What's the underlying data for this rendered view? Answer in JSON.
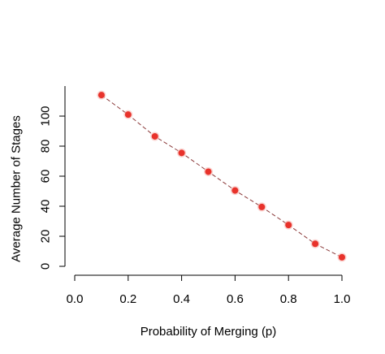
{
  "chart_data": {
    "type": "line",
    "title": "",
    "xlabel": "Probability of Merging (p)",
    "ylabel": "Average Number of Stages",
    "xlim": [
      0.0,
      1.0
    ],
    "ylim": [
      0,
      120
    ],
    "x_ticks": [
      "0.0",
      "0.2",
      "0.4",
      "0.6",
      "0.8",
      "1.0"
    ],
    "y_ticks": [
      "0",
      "20",
      "40",
      "60",
      "80",
      "100"
    ],
    "grid": false,
    "series": [
      {
        "x": [
          0.1,
          0.2,
          0.3,
          0.4,
          0.5,
          0.6,
          0.7,
          0.8,
          0.9,
          1.0
        ],
        "values": [
          114,
          101,
          86.5,
          75.5,
          63,
          50.5,
          39.5,
          27.5,
          15,
          6
        ]
      }
    ],
    "colors": {
      "point": "#e8322b",
      "line": "#8b3a3a"
    }
  }
}
